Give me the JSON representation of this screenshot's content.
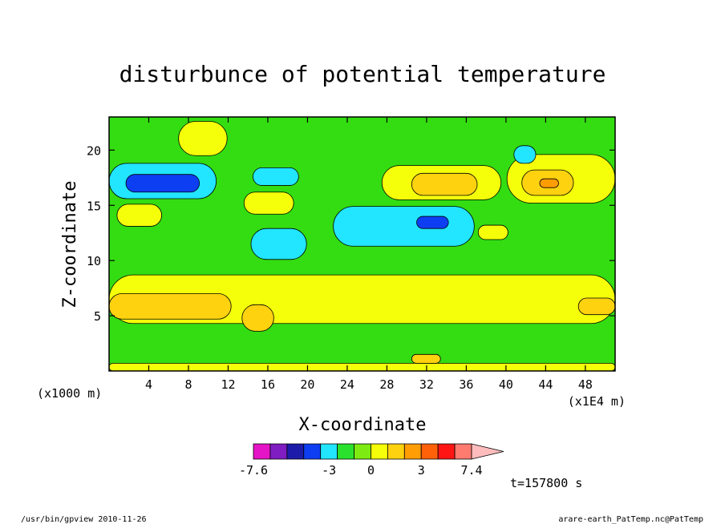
{
  "chart_data": {
    "type": "heatmap",
    "title": "disturbunce of potential temperature",
    "xlabel": "X-coordinate",
    "ylabel": "Z-coordinate",
    "x_units_left": "(x1000 m)",
    "x_units_right": "(x1E4 m)",
    "xlim": [
      0,
      51
    ],
    "ylim": [
      0,
      23
    ],
    "x_ticks": [
      4,
      8,
      12,
      16,
      20,
      24,
      28,
      32,
      36,
      40,
      44,
      48
    ],
    "x_tick_labels": [
      "4",
      "8",
      "12",
      "16",
      "20",
      "24",
      "28",
      "32",
      "36",
      "40",
      "44",
      "48"
    ],
    "y_ticks": [
      5,
      10,
      15,
      20
    ],
    "y_tick_labels": [
      "5",
      "10",
      "15",
      "20"
    ],
    "background_level_color": "#33dd11",
    "regions": [
      {
        "level": 1,
        "x": [
          0,
          51
        ],
        "y": [
          0,
          0.7
        ]
      },
      {
        "level": 1,
        "x": [
          0,
          51
        ],
        "y": [
          4.3,
          8.7
        ]
      },
      {
        "level": 2,
        "x": [
          0,
          12.3
        ],
        "y": [
          4.7,
          7.0
        ]
      },
      {
        "level": 2,
        "x": [
          13.4,
          16.6
        ],
        "y": [
          3.6,
          6.0
        ]
      },
      {
        "level": 2,
        "x": [
          47.3,
          51
        ],
        "y": [
          5.1,
          6.6
        ]
      },
      {
        "level": 1,
        "x": [
          7.0,
          11.9
        ],
        "y": [
          19.5,
          22.6
        ]
      },
      {
        "level": 1,
        "x": [
          0.8,
          5.3
        ],
        "y": [
          13.1,
          15.1
        ]
      },
      {
        "level": 1,
        "x": [
          13.6,
          18.6
        ],
        "y": [
          14.2,
          16.2
        ]
      },
      {
        "level": 1,
        "x": [
          40.1,
          51
        ],
        "y": [
          15.2,
          19.6
        ]
      },
      {
        "level": 2,
        "x": [
          41.6,
          46.8
        ],
        "y": [
          15.9,
          18.2
        ]
      },
      {
        "level": 3,
        "x": [
          43.4,
          45.3
        ],
        "y": [
          16.6,
          17.4
        ]
      },
      {
        "level": 1,
        "x": [
          27.5,
          39.5
        ],
        "y": [
          15.5,
          18.6
        ]
      },
      {
        "level": 2,
        "x": [
          30.5,
          37.1
        ],
        "y": [
          15.9,
          17.9
        ]
      },
      {
        "level": -1,
        "x": [
          0,
          10.8
        ],
        "y": [
          15.6,
          18.8
        ]
      },
      {
        "level": -2,
        "x": [
          1.7,
          9.1
        ],
        "y": [
          16.2,
          17.8
        ]
      },
      {
        "level": -1,
        "x": [
          14.3,
          19.9
        ],
        "y": [
          10.1,
          12.9
        ]
      },
      {
        "level": -1,
        "x": [
          14.5,
          19.1
        ],
        "y": [
          16.8,
          18.4
        ]
      },
      {
        "level": -1,
        "x": [
          22.6,
          36.8
        ],
        "y": [
          11.3,
          14.9
        ]
      },
      {
        "level": -2,
        "x": [
          31.0,
          34.2
        ],
        "y": [
          12.9,
          14.0
        ]
      },
      {
        "level": -1,
        "x": [
          40.8,
          43.0
        ],
        "y": [
          18.8,
          20.4
        ]
      },
      {
        "level": 1,
        "x": [
          37.2,
          40.2
        ],
        "y": [
          11.9,
          13.2
        ]
      },
      {
        "level": 2,
        "x": [
          30.5,
          33.4
        ],
        "y": [
          0.7,
          1.5
        ]
      }
    ],
    "colorbar": {
      "colors": [
        "#e514c6",
        "#7f1cc2",
        "#1c1ca9",
        "#0e3ef2",
        "#22e5ff",
        "#2ae22d",
        "#7deb12",
        "#f4ff09",
        "#ffd20f",
        "#ff9d05",
        "#ff6108",
        "#ff1614",
        "#ff7b70",
        "#ffbcbc"
      ],
      "tick_labels": [
        "-7.6",
        "-3",
        "0",
        "3",
        "7.4"
      ]
    },
    "level_colors": {
      "-2": "#0e3ef2",
      "-1": "#22e5ff",
      "1": "#f4ff09",
      "2": "#ffd20f",
      "3": "#ff9d05"
    },
    "time_label": "t=157800 s"
  },
  "footer": {
    "left": "/usr/bin/gpview  2010-11-26",
    "right": "arare-earth_PatTemp.nc@PatTemp"
  }
}
